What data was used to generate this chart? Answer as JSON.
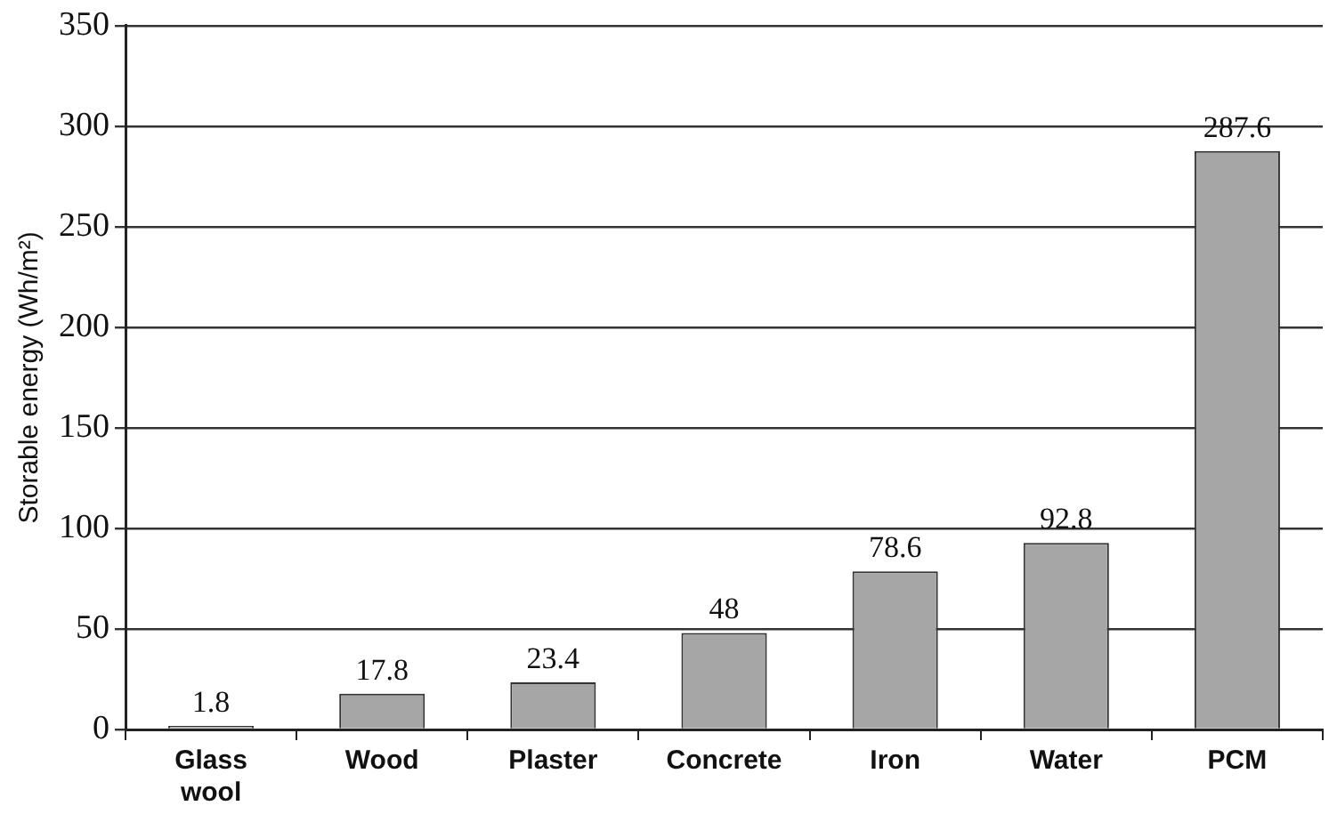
{
  "chart_data": {
    "type": "bar",
    "ylabel": "Storable energy (Wh/m²)",
    "categories": [
      "Glass wool",
      "Wood",
      "Plaster",
      "Concrete",
      "Iron",
      "Water",
      "PCM"
    ],
    "values": [
      1.8,
      17.8,
      23.4,
      48,
      78.6,
      92.8,
      287.6
    ],
    "color": "#a6a6a6",
    "ylim": [
      0,
      350
    ],
    "yticks": [
      0,
      50,
      100,
      150,
      200,
      250,
      300,
      350
    ],
    "grid": "y",
    "legend": false,
    "data_labels": true
  }
}
